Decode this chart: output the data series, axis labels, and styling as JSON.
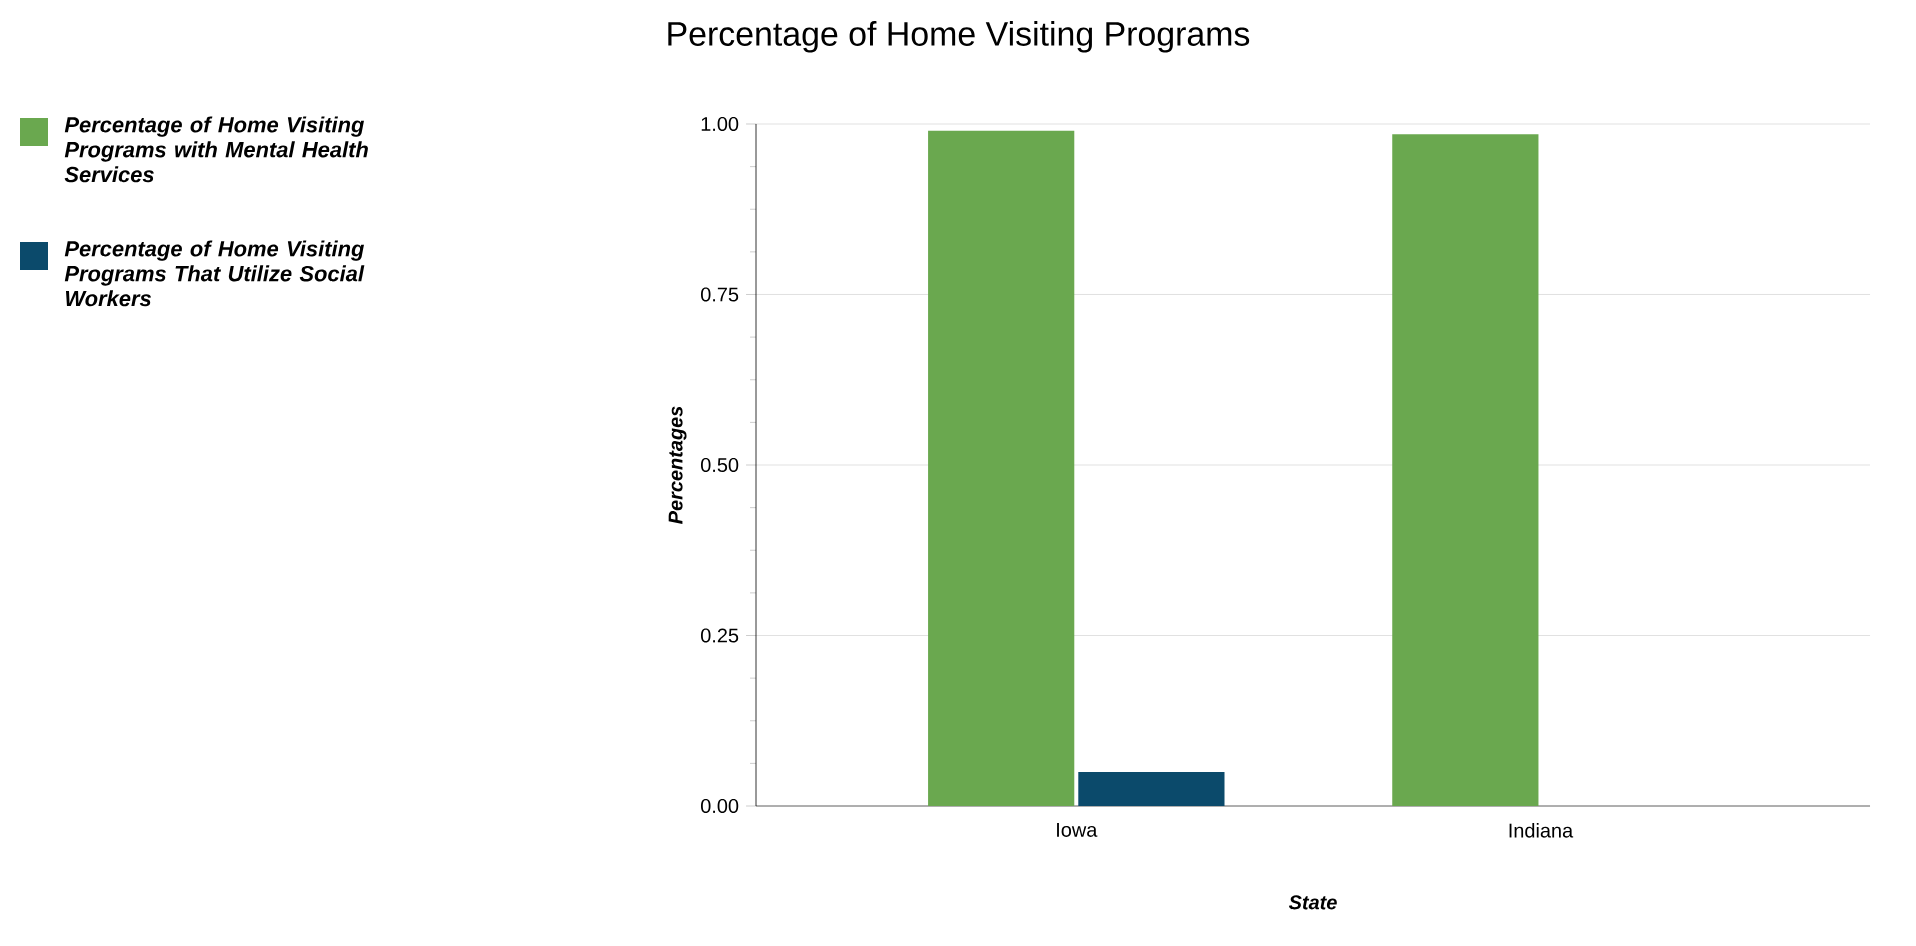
{
  "chart_data": {
    "type": "bar",
    "title": "Percentage of Home Visiting Programs",
    "xlabel": "State",
    "ylabel": "Percentages",
    "categories": [
      "Iowa",
      "Indiana"
    ],
    "series": [
      {
        "name": "Percentage of Home Visiting Programs with Mental Health Services",
        "color": "#6aa84f",
        "values": [
          0.99,
          0.985
        ]
      },
      {
        "name": "Percentage of Home Visiting Programs That Utilize Social Workers",
        "color": "#0b4a6b",
        "values": [
          0.05,
          null
        ]
      }
    ],
    "ylim": [
      0,
      1
    ],
    "yticks": [
      {
        "value": 0,
        "label": "0.00"
      },
      {
        "value": 0.25,
        "label": "0.25"
      },
      {
        "value": 0.5,
        "label": "0.50"
      },
      {
        "value": 0.75,
        "label": "0.75"
      },
      {
        "value": 1,
        "label": "1.00"
      }
    ],
    "grid": "y",
    "legend": "top left"
  }
}
